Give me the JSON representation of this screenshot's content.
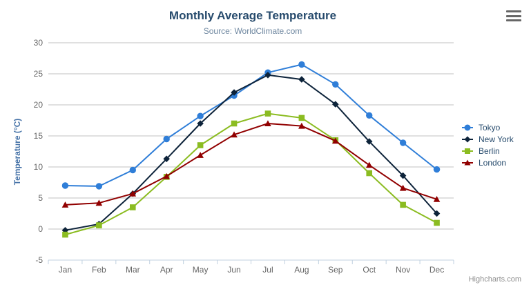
{
  "chart_data": {
    "type": "line",
    "title": "Monthly Average Temperature",
    "subtitle": "Source: WorldClimate.com",
    "xlabel": "",
    "ylabel": "Temperature (°C)",
    "ylim": [
      -5,
      30
    ],
    "ytick_interval": 5,
    "yticks": [
      30,
      25,
      20,
      15,
      10,
      5,
      0,
      -5
    ],
    "categories": [
      "Jan",
      "Feb",
      "Mar",
      "Apr",
      "May",
      "Jun",
      "Jul",
      "Aug",
      "Sep",
      "Oct",
      "Nov",
      "Dec"
    ],
    "grid": true,
    "legend_position": "right",
    "series": [
      {
        "name": "Tokyo",
        "color": "#2f7ed8",
        "marker": "circle",
        "values": [
          7.0,
          6.9,
          9.5,
          14.5,
          18.2,
          21.5,
          25.2,
          26.5,
          23.3,
          18.3,
          13.9,
          9.6
        ]
      },
      {
        "name": "New York",
        "color": "#0d233a",
        "marker": "diamond",
        "values": [
          -0.2,
          0.8,
          5.7,
          11.3,
          17.0,
          22.0,
          24.8,
          24.1,
          20.1,
          14.1,
          8.6,
          2.5
        ]
      },
      {
        "name": "Berlin",
        "color": "#8bbc21",
        "marker": "square",
        "values": [
          -0.9,
          0.6,
          3.5,
          8.4,
          13.5,
          17.0,
          18.6,
          17.9,
          14.3,
          9.0,
          3.9,
          1.0
        ]
      },
      {
        "name": "London",
        "color": "#910000",
        "marker": "triangle",
        "values": [
          3.9,
          4.2,
          5.7,
          8.5,
          11.9,
          15.2,
          17.0,
          16.6,
          14.2,
          10.3,
          6.6,
          4.8
        ]
      }
    ]
  },
  "credits": {
    "text": "Highcharts.com"
  },
  "colors": {
    "background": "#ffffff",
    "grid": "#c0c0c0",
    "axis_line": "#c0d0e0",
    "tick_label": "#666666",
    "title": "#274b6d",
    "subtitle": "#6d869f",
    "axis_title": "#4572a7",
    "legend_text": "#274b6d",
    "credits": "#909090",
    "menu_icon": "#666666"
  }
}
